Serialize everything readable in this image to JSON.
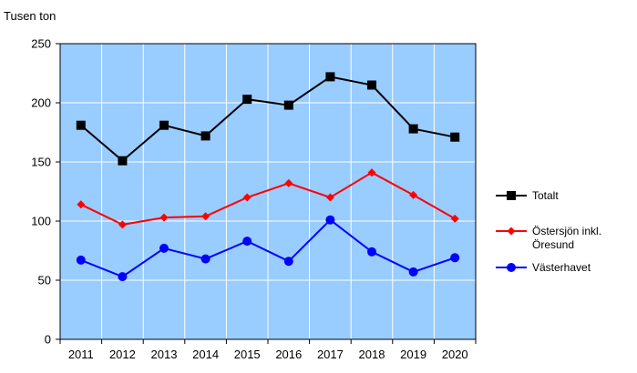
{
  "chart_data": {
    "type": "line",
    "ylabel": "Tusen ton",
    "categories": [
      "2011",
      "2012",
      "2013",
      "2014",
      "2015",
      "2016",
      "2017",
      "2018",
      "2019",
      "2020"
    ],
    "ylim": [
      0,
      250
    ],
    "yticks": [
      0,
      50,
      100,
      150,
      200,
      250
    ],
    "grid": true,
    "plot_background": "#99ccff",
    "legend_position": "right",
    "series": [
      {
        "name": "Totalt",
        "color": "#000000",
        "marker": "square",
        "values": [
          181,
          151,
          181,
          172,
          203,
          198,
          222,
          215,
          178,
          171
        ]
      },
      {
        "name": "Östersjön inkl.",
        "name_line2": "Öresund",
        "color": "#ff0000",
        "marker": "diamond",
        "values": [
          114,
          97,
          103,
          104,
          120,
          132,
          120,
          141,
          122,
          102
        ]
      },
      {
        "name": "Västerhavet",
        "color": "#0000ff",
        "marker": "circle",
        "values": [
          67,
          53,
          77,
          68,
          83,
          66,
          101,
          74,
          57,
          69
        ]
      }
    ]
  }
}
